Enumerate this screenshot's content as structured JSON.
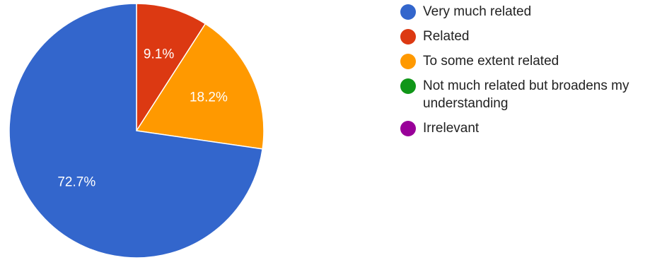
{
  "chart_data": {
    "type": "pie",
    "title": "",
    "start": "12 o'clock",
    "direction": "clockwise",
    "legend_position": "right",
    "slices": [
      {
        "name": "Not much related but broadens my understanding",
        "value": 0,
        "label": "",
        "color": "#109618"
      },
      {
        "name": "Irrelevant",
        "value": 0,
        "label": "",
        "color": "#990099"
      },
      {
        "name": "Related",
        "value": 9.1,
        "label": "9.1%",
        "color": "#DC3912"
      },
      {
        "name": "To some extent related",
        "value": 18.2,
        "label": "18.2%",
        "color": "#FF9900"
      },
      {
        "name": "Very much related",
        "value": 72.7,
        "label": "72.7%",
        "color": "#3366CC"
      }
    ],
    "legend": [
      {
        "label": "Very much related",
        "color": "#3366CC"
      },
      {
        "label": "Related",
        "color": "#DC3912"
      },
      {
        "label": "To some extent related",
        "color": "#FF9900"
      },
      {
        "label": "Not much related but broadens my understanding",
        "color": "#109618"
      },
      {
        "label": "Irrelevant",
        "color": "#990099"
      }
    ]
  }
}
